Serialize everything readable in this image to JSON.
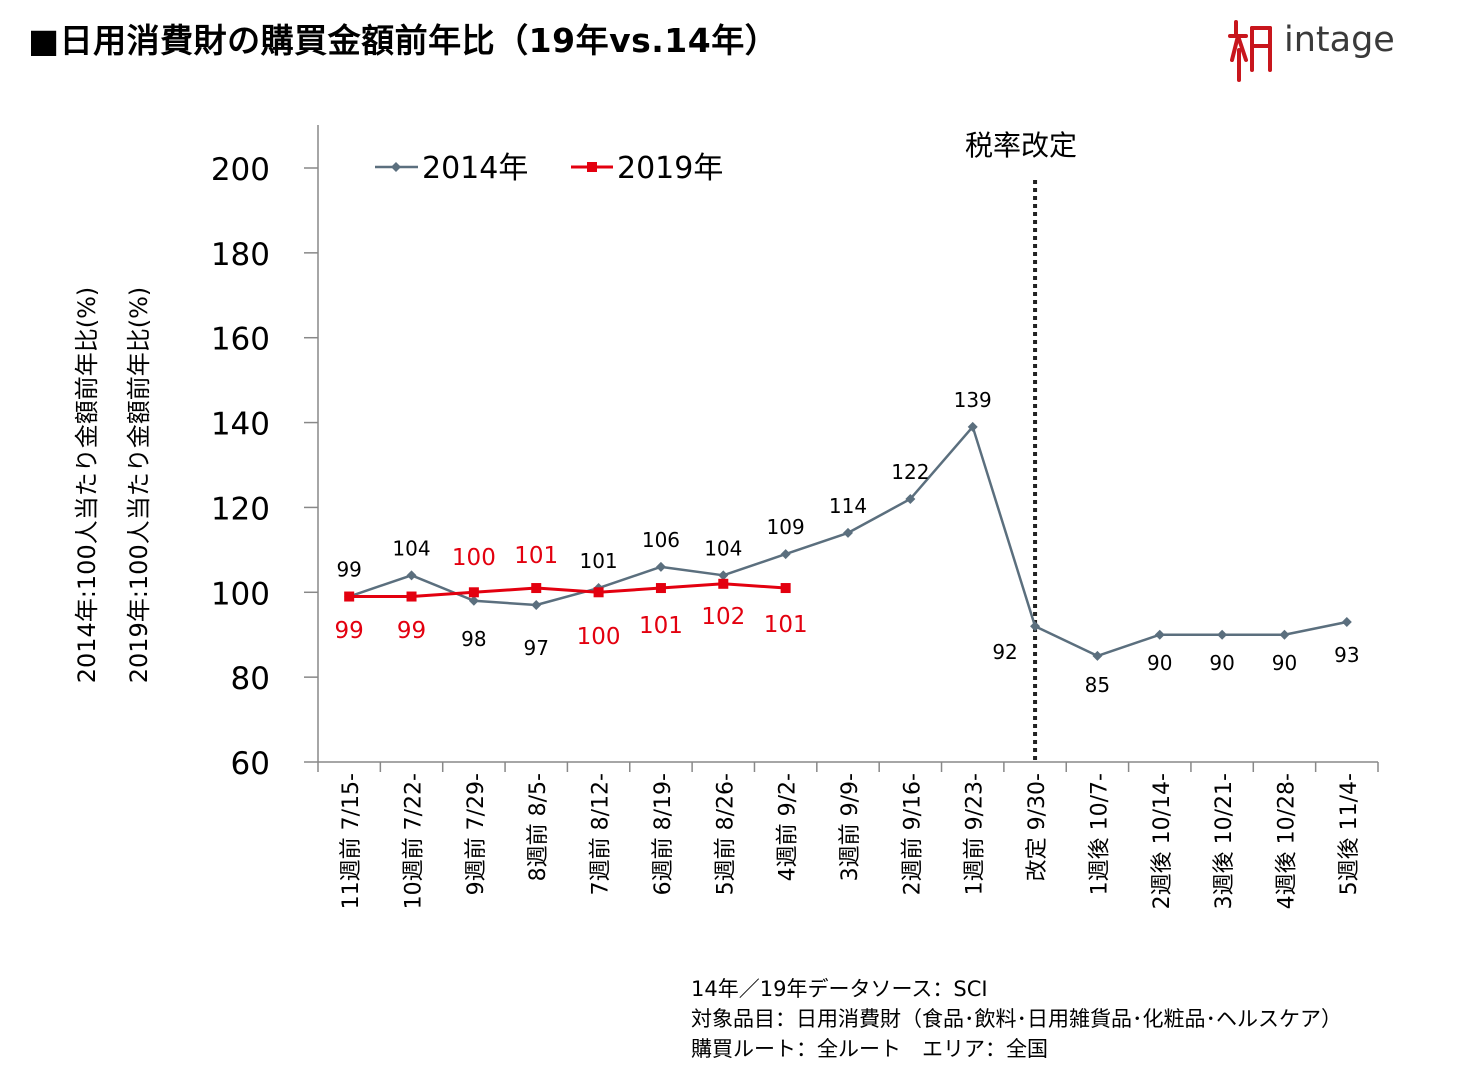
{
  "title": "■日用消費財の購買金額前年比（19年vs.14年）",
  "logo": {
    "text": "intage",
    "icon": "intage-figure-icon",
    "color": "#c8161d"
  },
  "colors": {
    "s2014": "#5b6f7e",
    "s2019": "#e3000f",
    "event": "#222222"
  },
  "chart_data": {
    "type": "line",
    "ylabel_lines": [
      "2014年:100人当たり金額前年比(%)",
      "2019年:100人当たり金額前年比(%)"
    ],
    "ylim": [
      60,
      200
    ],
    "yticks": [
      60,
      80,
      100,
      120,
      140,
      160,
      180,
      200
    ],
    "grid": false,
    "legend_position": "top-left",
    "categories": [
      "11週前 7/15-",
      "10週前 7/22-",
      "9週前 7/29-",
      "8週前 8/5-",
      "7週前 8/12-",
      "6週前 8/19-",
      "5週前 8/26-",
      "4週前 9/2-",
      "3週前 9/9-",
      "2週前 9/16-",
      "1週前 9/23-",
      "改定 9/30-",
      "1週後 10/7-",
      "2週後 10/14-",
      "3週後 10/21-",
      "4週後 10/28-",
      "5週後 11/4-"
    ],
    "series": [
      {
        "name": "2014年",
        "marker": "diamond",
        "values": [
          99,
          104,
          98,
          97,
          101,
          106,
          104,
          109,
          114,
          122,
          139,
          92,
          85,
          90,
          90,
          90,
          93
        ],
        "labels": [
          "99",
          "104",
          "98",
          "97",
          "101",
          "106",
          "104",
          "109",
          "114",
          "122",
          "139",
          "92",
          "85",
          "90",
          "90",
          "90",
          "93"
        ]
      },
      {
        "name": "2019年",
        "marker": "square",
        "values": [
          99,
          99,
          100,
          101,
          100,
          101,
          102,
          101,
          null,
          null,
          null,
          null,
          null,
          null,
          null,
          null,
          null
        ],
        "labels": [
          "99",
          "99",
          "100",
          "101",
          "100",
          "101",
          "102",
          "101"
        ]
      }
    ],
    "annotation": {
      "text": "税率改定",
      "category_index": 11
    }
  },
  "footnotes": [
    "14年／19年データソース：SCI",
    "対象品目：日用消費財（食品･飲料･日用雑貨品･化粧品･ヘルスケア）",
    "購買ルート：全ルート　エリア：全国"
  ]
}
